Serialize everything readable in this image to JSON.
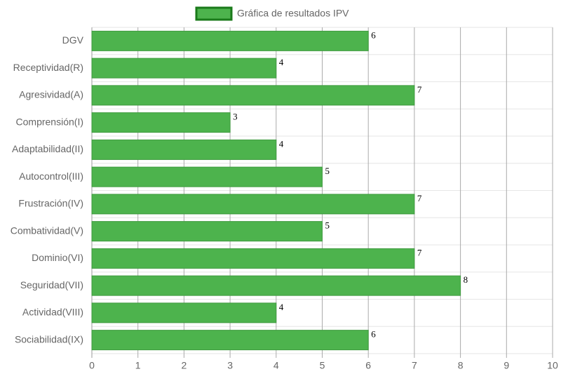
{
  "chart_data": {
    "type": "bar",
    "orientation": "horizontal",
    "series": [
      {
        "name": "Gráfica de resultados IPV",
        "color": "#4db34d",
        "values": [
          6,
          4,
          7,
          3,
          4,
          5,
          7,
          5,
          7,
          8,
          4,
          6
        ]
      }
    ],
    "categories": [
      "DGV",
      "Receptividad(R)",
      "Agresividad(A)",
      "Comprensión(I)",
      "Adaptabilidad(II)",
      "Autocontrol(III)",
      "Frustración(IV)",
      "Combatividad(V)",
      "Dominio(VI)",
      "Seguridad(VII)",
      "Actividad(VIII)",
      "Sociabilidad(IX)"
    ],
    "xlim": [
      0,
      10
    ],
    "xticks": [
      0,
      1,
      2,
      3,
      4,
      5,
      6,
      7,
      8,
      9,
      10
    ],
    "grid": true,
    "legend": "top"
  }
}
